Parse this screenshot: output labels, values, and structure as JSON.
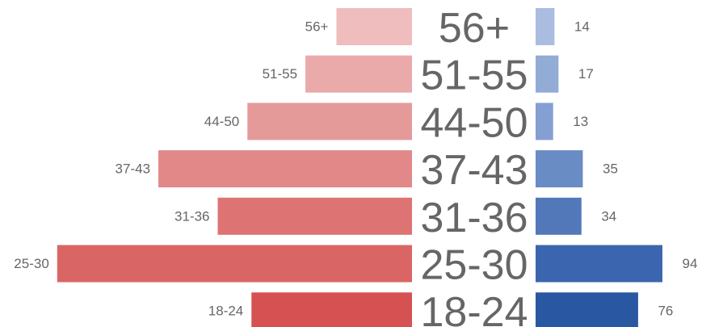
{
  "chart_data": {
    "type": "butterfly",
    "categories": [
      "56+",
      "51-55",
      "44-50",
      "37-43",
      "31-36",
      "25-30",
      "18-24"
    ],
    "series": [
      {
        "colors": [
          "#efbdbd",
          "#eaaaaa",
          "#e59a9a",
          "#e28888",
          "#de7373",
          "#da6565",
          "#d65252"
        ],
        "values": [
          56,
          79,
          122,
          188,
          144,
          263,
          119
        ]
      },
      {
        "colors": [
          "#aabce0",
          "#93acd6",
          "#859fd2",
          "#6a8cc4",
          "#5378ba",
          "#3b66af",
          "#2a57a2"
        ],
        "values": [
          14,
          17,
          13,
          35,
          34,
          94,
          76
        ]
      }
    ]
  }
}
